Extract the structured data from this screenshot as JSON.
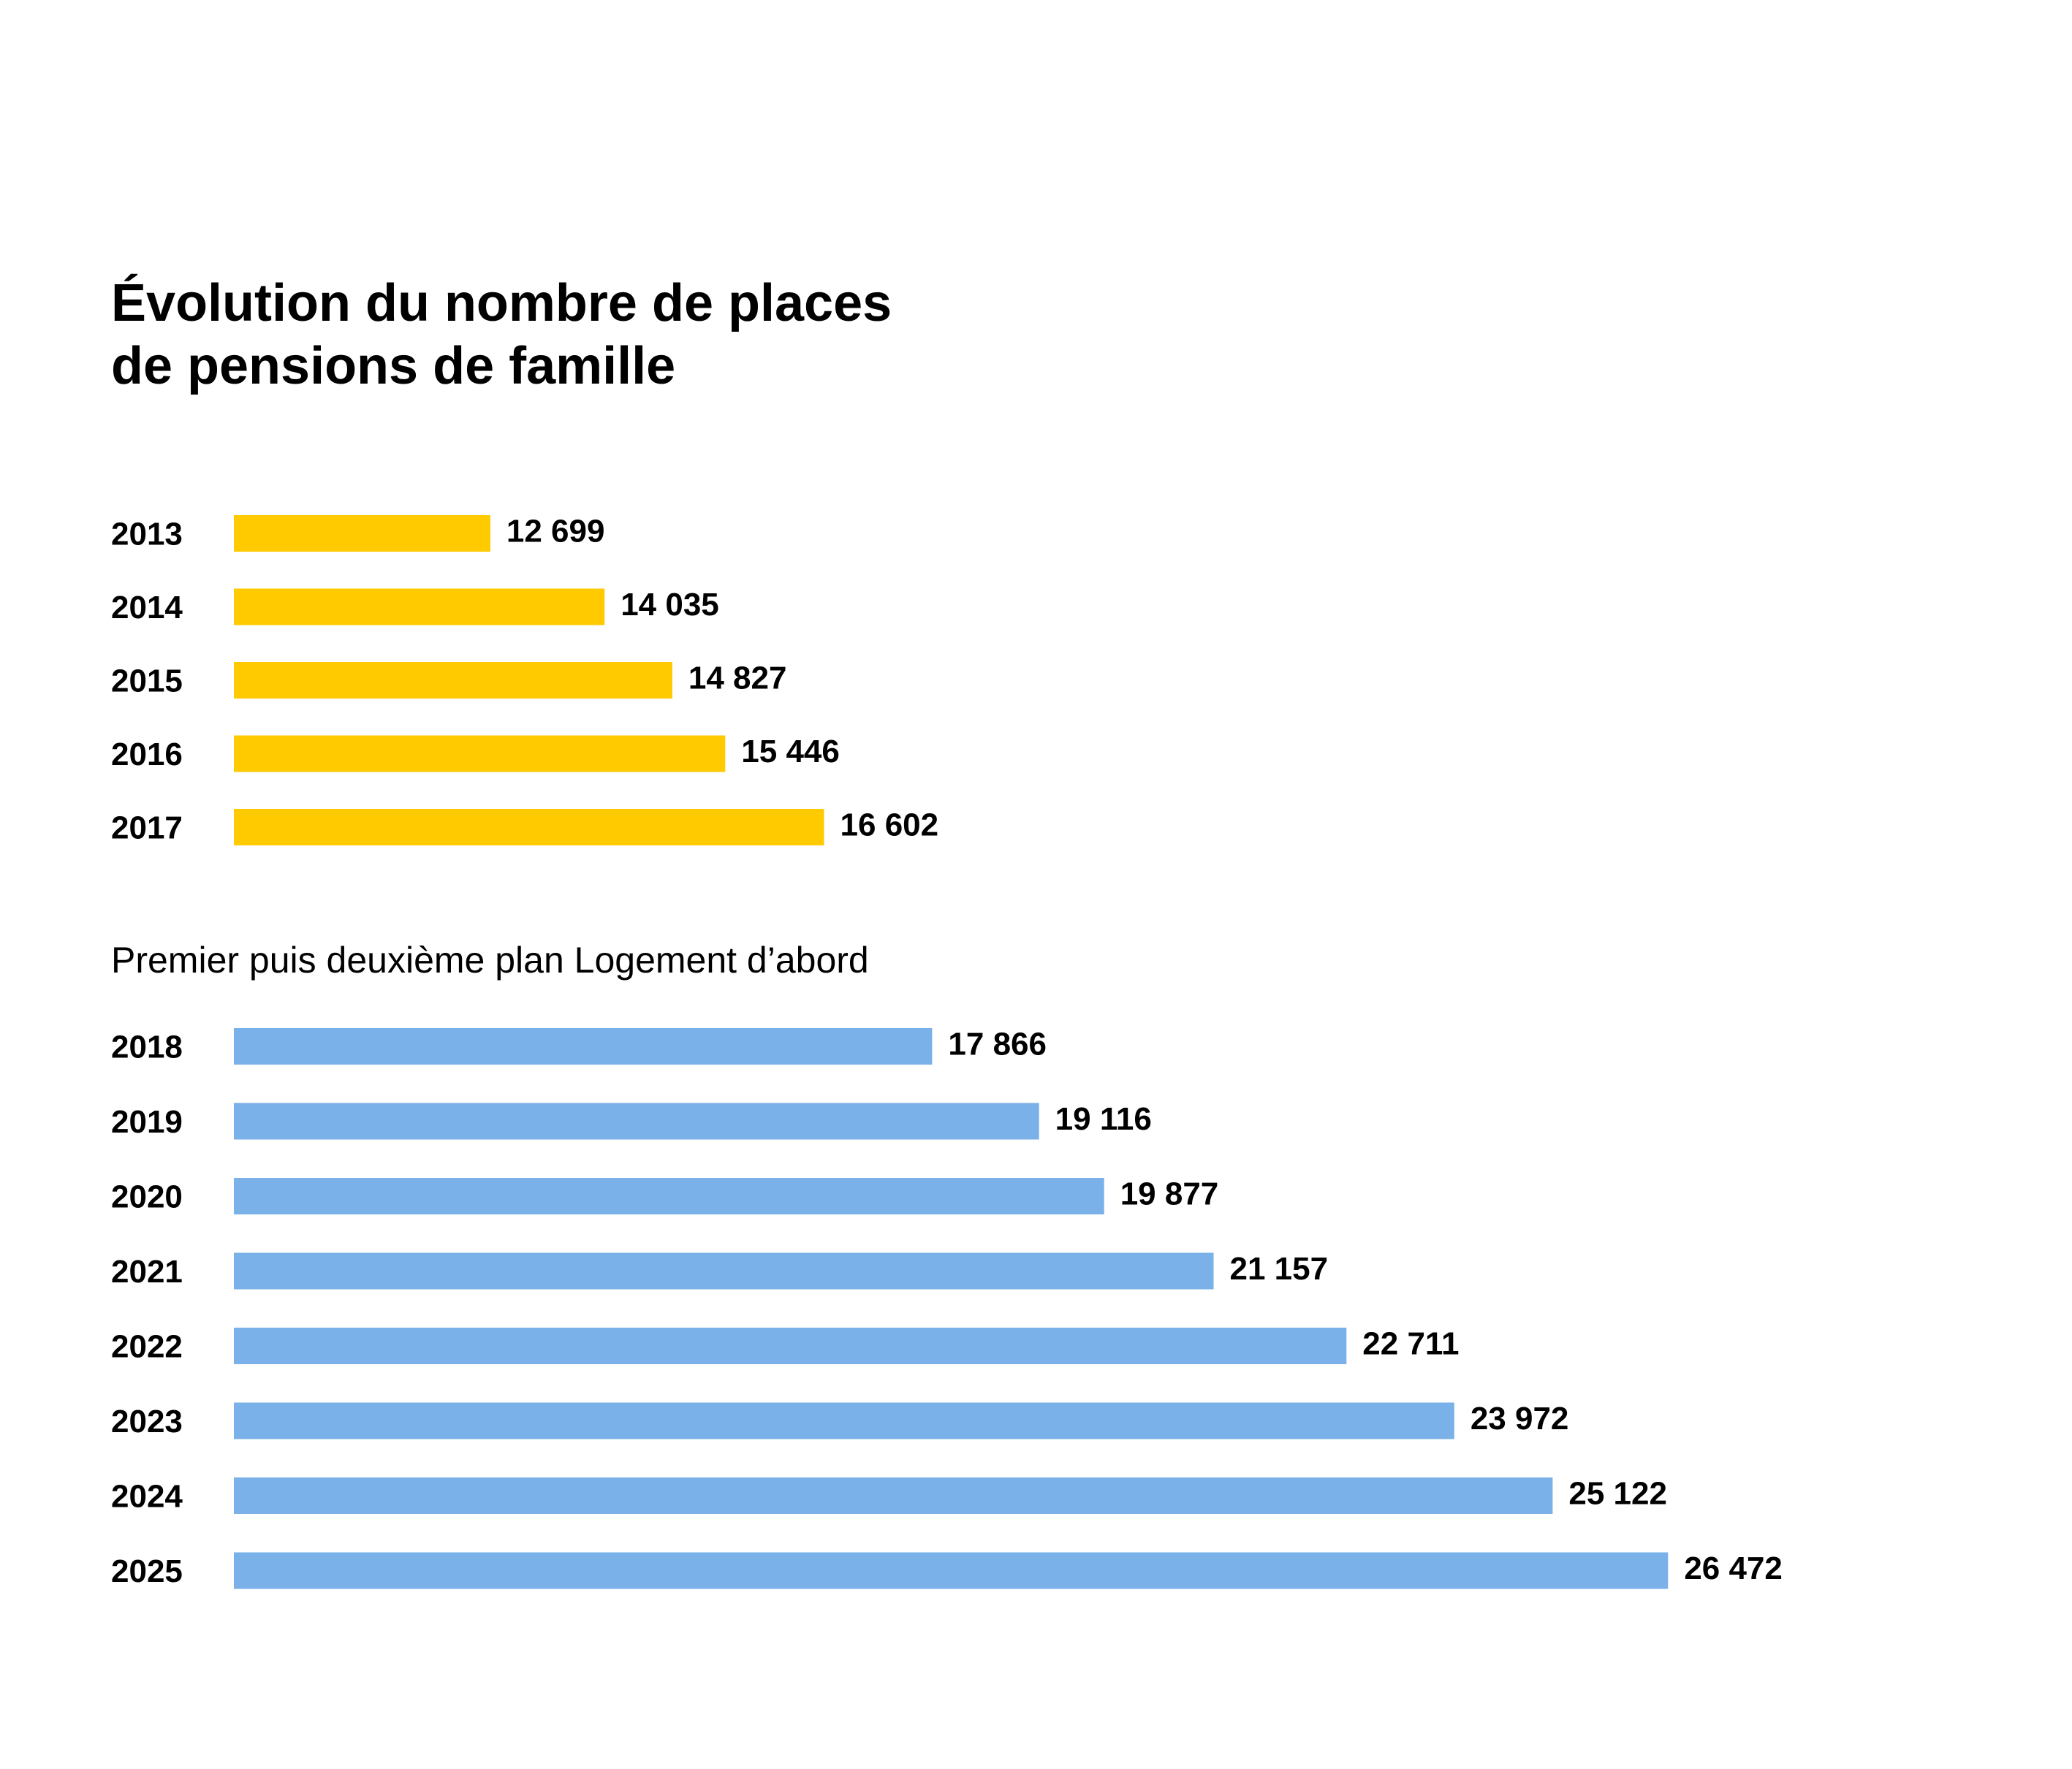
{
  "chart_data": {
    "type": "bar",
    "orientation": "horizontal",
    "title": [
      "Évolution du nombre de places",
      "de pensions de famille"
    ],
    "xlabel": "",
    "ylabel": "",
    "grid": false,
    "series": [
      {
        "name": "",
        "color": "#FFCA00",
        "categories": [
          "2013",
          "2014",
          "2015",
          "2016",
          "2017"
        ],
        "values": [
          12699,
          14035,
          14827,
          15446,
          16602
        ],
        "value_labels": [
          "12 699",
          "14 035",
          "14 827",
          "15 446",
          "16 602"
        ]
      },
      {
        "name": "Premier puis deuxième plan Logement d’abord",
        "color": "#7AB1E8",
        "categories": [
          "2018",
          "2019",
          "2020",
          "2021",
          "2022",
          "2023",
          "2024",
          "2025"
        ],
        "values": [
          17866,
          19116,
          19877,
          21157,
          22711,
          23972,
          25122,
          26472
        ],
        "value_labels": [
          "17 866",
          "19 116",
          "19 877",
          "21 157",
          "22 711",
          "23 972",
          "25 122",
          "26 472"
        ]
      }
    ]
  }
}
